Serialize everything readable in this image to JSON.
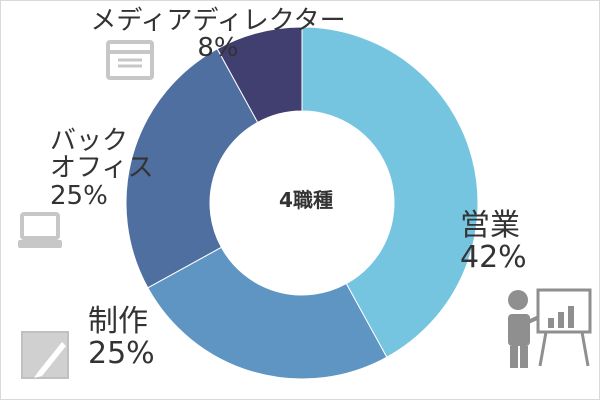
{
  "chart_data": {
    "type": "pie",
    "center_label": "4職種",
    "slices": [
      {
        "name": "営業",
        "value": 42,
        "label": "42%",
        "color": "#76c5e0"
      },
      {
        "name": "制作",
        "value": 25,
        "label": "25%",
        "color": "#5f95c3"
      },
      {
        "name": "バック\nオフィス",
        "value": 25,
        "label": "25%",
        "color": "#4f6fa1"
      },
      {
        "name": "メディアディレクター",
        "value": 8,
        "label": "8%",
        "color": "#413f6f"
      }
    ]
  },
  "icons": {
    "browser": "browser-window-icon",
    "laptop": "laptop-icon",
    "pen": "pen-paper-icon",
    "presenter": "presenter-chart-icon"
  }
}
